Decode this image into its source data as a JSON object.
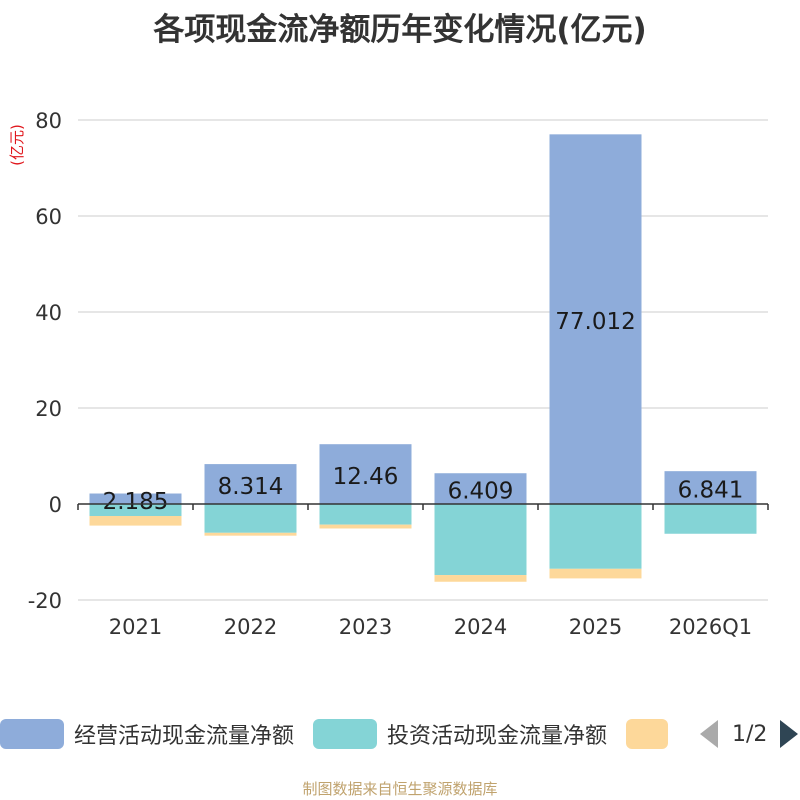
{
  "chart_data": {
    "type": "bar",
    "stacked": true,
    "title": "各项现金流净额历年变化情况(亿元)",
    "ylabel": "(亿元)",
    "xlabel": "",
    "categories": [
      "2021",
      "2022",
      "2023",
      "2024",
      "2025",
      "2026Q1"
    ],
    "ylim": [
      -20,
      80
    ],
    "yticks": [
      -20,
      0,
      20,
      40,
      60,
      80
    ],
    "grid": true,
    "series": [
      {
        "name": "经营活动现金流量净额",
        "color": "#8eacda",
        "values": [
          2.185,
          8.314,
          12.46,
          6.409,
          77.012,
          6.841
        ],
        "labels": [
          "2.185",
          "8.314",
          "12.46",
          "6.409",
          "77.012",
          "6.841"
        ]
      },
      {
        "name": "投资活动现金流量净额",
        "color": "#84d4d6",
        "values": [
          -2.5,
          -6.0,
          -4.3,
          -14.8,
          -13.5,
          -6.2
        ]
      },
      {
        "name": "",
        "color": "#fdd89a",
        "values": [
          -2.0,
          -0.6,
          -0.8,
          -1.4,
          -2.0,
          0
        ]
      }
    ]
  },
  "legend": {
    "items": [
      {
        "label": "经营活动现金流量净额",
        "color": "#8eacda"
      },
      {
        "label": "投资活动现金流量净额",
        "color": "#84d4d6"
      },
      {
        "label": "",
        "color": "#fdd89a"
      }
    ],
    "page": "1/2"
  },
  "footer": "制图数据来自恒生聚源数据库"
}
